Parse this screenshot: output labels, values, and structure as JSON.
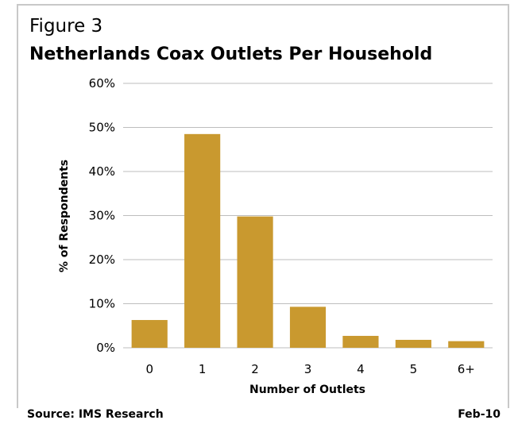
{
  "figure_label": "Figure 3",
  "chart_data": {
    "type": "bar",
    "title": "Netherlands Coax Outlets Per Household",
    "categories": [
      "0",
      "1",
      "2",
      "3",
      "4",
      "5",
      "6+"
    ],
    "values": [
      6.3,
      48.5,
      29.8,
      9.3,
      2.7,
      1.8,
      1.5
    ],
    "xlabel": "Number of Outlets",
    "ylabel": "% of Respondents",
    "ylim": [
      0,
      60
    ],
    "yticks": [
      "0%",
      "10%",
      "20%",
      "30%",
      "40%",
      "50%",
      "60%"
    ],
    "grid": true,
    "legend": "none",
    "bar_color": "#c9992f",
    "grid_color": "#bdbdbd"
  },
  "footer": {
    "source": "Source: IMS Research",
    "date": "Feb-10"
  }
}
